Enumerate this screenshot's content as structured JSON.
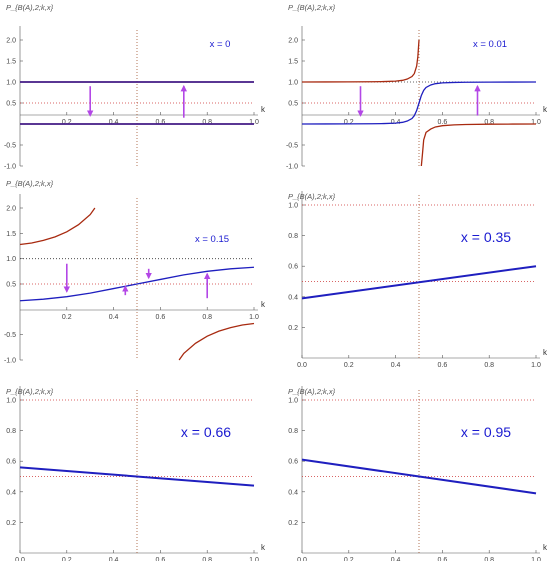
{
  "colors": {
    "blue": "#1f1fbf",
    "red": "#a82a10",
    "arrow": "#b347e6",
    "refline": "#a0522d",
    "unit_line": "#333333",
    "axis": "#555555"
  },
  "chart_data": [
    {
      "type": "line",
      "ylabel": "P_{B(A),2;k,x}",
      "xlabel": "k",
      "annotation": "x = 0",
      "xlim": [
        0,
        1
      ],
      "ylim": [
        -1,
        2
      ],
      "xticks": [
        "0.2",
        "0.4",
        "0.6",
        "0.8",
        "1.0"
      ],
      "yticks": [
        "-1.0",
        "-0.5",
        "0.5",
        "1.0",
        "1.5",
        "2.0"
      ],
      "reference_lines": {
        "y_dotted": [
          1.0,
          0.5
        ],
        "x_dotted": 0.5
      },
      "series": [
        {
          "color": "red",
          "points": [
            [
              0,
              1
            ],
            [
              1,
              1
            ]
          ]
        },
        {
          "color": "blue",
          "points": [
            [
              0,
              1
            ],
            [
              1,
              1
            ]
          ]
        },
        {
          "color": "red",
          "points": [
            [
              0,
              0
            ],
            [
              1,
              0
            ]
          ]
        },
        {
          "color": "blue",
          "points": [
            [
              0,
              0
            ],
            [
              1,
              0
            ]
          ]
        }
      ],
      "arrows": [
        {
          "x": 0.3,
          "from": 0.9,
          "to": 0.2
        },
        {
          "x": 0.7,
          "from": 0.15,
          "to": 0.9
        }
      ]
    },
    {
      "type": "line",
      "ylabel": "P_{B(A),2;k,x}",
      "xlabel": "k",
      "annotation": "x = 0.01",
      "xlim": [
        0,
        1
      ],
      "ylim": [
        -1,
        2
      ],
      "xticks": [
        "0.2",
        "0.4",
        "0.6",
        "0.8",
        "1.0"
      ],
      "yticks": [
        "-1.0",
        "-0.5",
        "0.5",
        "1.0",
        "1.5",
        "2.0"
      ],
      "reference_lines": {
        "y_dotted": [
          1.0,
          0.5
        ],
        "x_dotted": 0.5
      },
      "series": [
        {
          "color": "red",
          "points": [
            [
              0,
              1.0
            ],
            [
              0.1,
              1.001
            ],
            [
              0.2,
              1.003
            ],
            [
              0.3,
              1.006
            ],
            [
              0.35,
              1.01
            ],
            [
              0.4,
              1.02
            ],
            [
              0.43,
              1.04
            ],
            [
              0.45,
              1.07
            ],
            [
              0.47,
              1.13
            ],
            [
              0.48,
              1.2
            ],
            [
              0.49,
              1.38
            ],
            [
              0.495,
              1.6
            ],
            [
              0.5,
              2.0
            ]
          ]
        },
        {
          "color": "blue",
          "points": [
            [
              0,
              0.0
            ],
            [
              0.1,
              0.001
            ],
            [
              0.2,
              0.003
            ],
            [
              0.3,
              0.006
            ],
            [
              0.35,
              0.01
            ],
            [
              0.4,
              0.02
            ],
            [
              0.43,
              0.04
            ],
            [
              0.45,
              0.07
            ],
            [
              0.47,
              0.13
            ],
            [
              0.48,
              0.2
            ],
            [
              0.49,
              0.32
            ],
            [
              0.5,
              0.5
            ],
            [
              0.51,
              0.68
            ],
            [
              0.52,
              0.8
            ],
            [
              0.53,
              0.87
            ],
            [
              0.55,
              0.93
            ],
            [
              0.57,
              0.96
            ],
            [
              0.6,
              0.98
            ],
            [
              0.65,
              0.99
            ],
            [
              0.7,
              0.994
            ],
            [
              0.8,
              0.997
            ],
            [
              0.9,
              0.999
            ],
            [
              1.0,
              1.0
            ]
          ]
        },
        {
          "color": "red",
          "points": [
            [
              0.51,
              -1.0
            ],
            [
              0.515,
              -0.7
            ],
            [
              0.52,
              -0.38
            ],
            [
              0.53,
              -0.2
            ],
            [
              0.55,
              -0.12
            ],
            [
              0.57,
              -0.07
            ],
            [
              0.6,
              -0.04
            ],
            [
              0.65,
              -0.02
            ],
            [
              0.7,
              -0.012
            ],
            [
              0.8,
              -0.005
            ],
            [
              0.9,
              -0.002
            ],
            [
              1.0,
              0.0
            ]
          ]
        }
      ],
      "arrows": [
        {
          "x": 0.25,
          "from": 0.9,
          "to": 0.2
        },
        {
          "x": 0.75,
          "from": 0.2,
          "to": 0.9
        }
      ]
    },
    {
      "type": "line",
      "ylabel": "P_{B(A),2;k,x}",
      "xlabel": "k",
      "annotation": "x = 0.15",
      "xlim": [
        0,
        1
      ],
      "ylim": [
        -1,
        2
      ],
      "xticks": [
        "0.2",
        "0.4",
        "0.6",
        "0.8",
        "1.0"
      ],
      "yticks": [
        "-1.0",
        "-0.5",
        "0.5",
        "1.0",
        "1.5",
        "2.0"
      ],
      "reference_lines": {
        "y_dotted": [
          1.0,
          0.5
        ],
        "x_dotted": 0.5
      },
      "series": [
        {
          "color": "red",
          "points": [
            [
              0,
              1.28
            ],
            [
              0.05,
              1.31
            ],
            [
              0.1,
              1.36
            ],
            [
              0.15,
              1.43
            ],
            [
              0.2,
              1.53
            ],
            [
              0.25,
              1.67
            ],
            [
              0.3,
              1.87
            ],
            [
              0.32,
              2.0
            ]
          ]
        },
        {
          "color": "blue",
          "points": [
            [
              0,
              0.17
            ],
            [
              0.1,
              0.2
            ],
            [
              0.2,
              0.25
            ],
            [
              0.3,
              0.32
            ],
            [
              0.4,
              0.41
            ],
            [
              0.5,
              0.5
            ],
            [
              0.6,
              0.59
            ],
            [
              0.7,
              0.68
            ],
            [
              0.8,
              0.75
            ],
            [
              0.9,
              0.8
            ],
            [
              1.0,
              0.83
            ]
          ]
        },
        {
          "color": "red",
          "points": [
            [
              0.68,
              -1.0
            ],
            [
              0.7,
              -0.87
            ],
            [
              0.75,
              -0.67
            ],
            [
              0.8,
              -0.53
            ],
            [
              0.85,
              -0.43
            ],
            [
              0.9,
              -0.36
            ],
            [
              0.95,
              -0.31
            ],
            [
              1.0,
              -0.28
            ]
          ]
        }
      ],
      "arrows": [
        {
          "x": 0.2,
          "from": 0.9,
          "to": 0.35
        },
        {
          "x": 0.45,
          "from": 0.28,
          "to": 0.45
        },
        {
          "x": 0.55,
          "from": 0.8,
          "to": 0.62
        },
        {
          "x": 0.8,
          "from": 0.22,
          "to": 0.7
        }
      ]
    },
    {
      "type": "line",
      "ylabel": "P_{B(A),2;k,x}",
      "xlabel": "k",
      "annotation": "x = 0.35",
      "xlim": [
        0,
        1
      ],
      "ylim": [
        0,
        1
      ],
      "xticks": [
        "0.0",
        "0.2",
        "0.4",
        "0.6",
        "0.8",
        "1.0"
      ],
      "yticks": [
        "0.2",
        "0.4",
        "0.6",
        "0.8",
        "1.0"
      ],
      "reference_lines": {
        "y_dotted": [
          1.0,
          0.5
        ],
        "x_dotted": 0.5
      },
      "series": [
        {
          "color": "blue",
          "points": [
            [
              0,
              0.39
            ],
            [
              1,
              0.6
            ]
          ]
        }
      ]
    },
    {
      "type": "line",
      "ylabel": "P_{B(A),2;k,x}",
      "xlabel": "k",
      "annotation": "x = 0.66",
      "xlim": [
        0,
        1
      ],
      "ylim": [
        0,
        1
      ],
      "xticks": [
        "0.0",
        "0.2",
        "0.4",
        "0.6",
        "0.8",
        "1.0"
      ],
      "yticks": [
        "0.2",
        "0.4",
        "0.6",
        "0.8",
        "1.0"
      ],
      "reference_lines": {
        "y_dotted": [
          1.0,
          0.5
        ],
        "x_dotted": 0.5
      },
      "series": [
        {
          "color": "blue",
          "points": [
            [
              0,
              0.56
            ],
            [
              1,
              0.44
            ]
          ]
        }
      ]
    },
    {
      "type": "line",
      "ylabel": "P_{B(A),2;k,x}",
      "xlabel": "k",
      "annotation": "x = 0.95",
      "xlim": [
        0,
        1
      ],
      "ylim": [
        0,
        1
      ],
      "xticks": [
        "0.0",
        "0.2",
        "0.4",
        "0.6",
        "0.8",
        "1.0"
      ],
      "yticks": [
        "0.2",
        "0.4",
        "0.6",
        "0.8",
        "1.0"
      ],
      "reference_lines": {
        "y_dotted": [
          1.0,
          0.5
        ],
        "x_dotted": 0.5
      },
      "series": [
        {
          "color": "blue",
          "points": [
            [
              0,
              0.61
            ],
            [
              1,
              0.39
            ]
          ]
        }
      ]
    }
  ]
}
